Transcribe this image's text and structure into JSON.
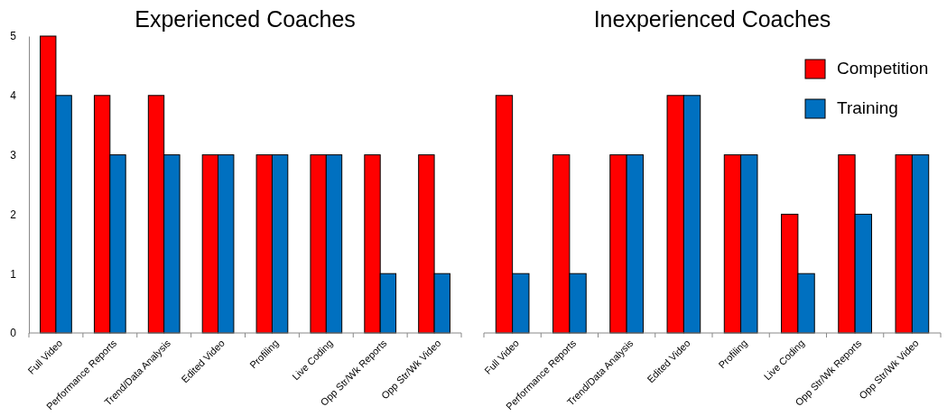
{
  "chart_data": [
    {
      "type": "bar",
      "title": "Experienced Coaches",
      "categories": [
        "Full Video",
        "Performance Reports",
        "Trend/Data Analysis",
        "Edited Video",
        "Profiling",
        "Live Coding",
        "Opp Str/Wk Reports",
        "Opp Str/Wk Video"
      ],
      "series": [
        {
          "color": "#ff0000",
          "values": [
            5,
            4,
            4,
            3,
            3,
            3,
            3,
            3
          ]
        },
        {
          "color": "#0070c0",
          "values": [
            4,
            3,
            3,
            3,
            3,
            3,
            1,
            1
          ]
        }
      ],
      "ylim": [
        0,
        5
      ],
      "yticks": [
        0,
        1,
        2,
        3,
        4,
        5
      ],
      "grid": false,
      "legend": false
    },
    {
      "type": "bar",
      "title": "Inexperienced Coaches",
      "categories": [
        "Full Video",
        "Performance Reports",
        "Trend/Data Analysis",
        "Edited Video",
        "Profiling",
        "Live Coding",
        "Opp Str/Wk Reports",
        "Opp Str/Wk Video"
      ],
      "series": [
        {
          "name": "Competition",
          "color": "#ff0000",
          "values": [
            4,
            3,
            3,
            4,
            3,
            2,
            3,
            3
          ]
        },
        {
          "name": "Training",
          "color": "#0070c0",
          "values": [
            1,
            1,
            3,
            4,
            3,
            1,
            2,
            3
          ]
        }
      ],
      "ylim": [
        0,
        5
      ],
      "tick_labels": "x",
      "grid": false,
      "legend": "top right"
    }
  ]
}
